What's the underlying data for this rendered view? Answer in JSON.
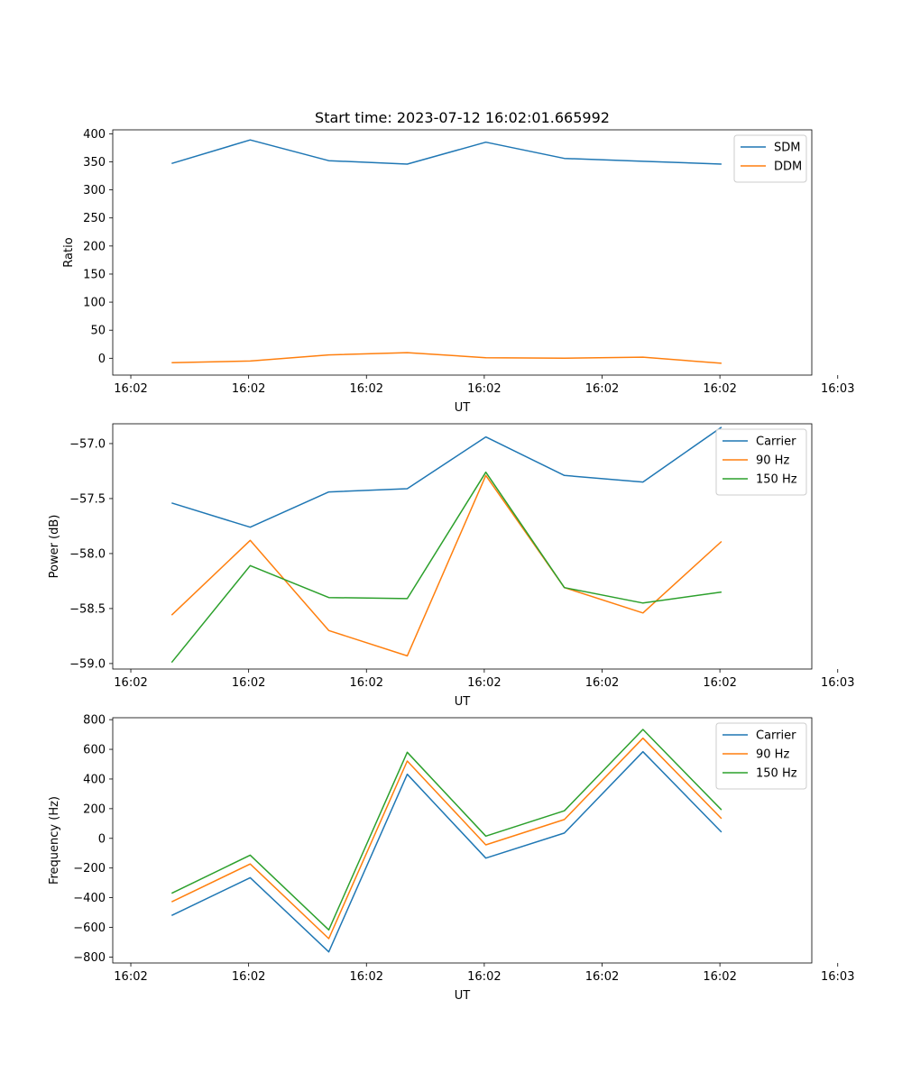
{
  "page_title": "Start time: 2023-07-12 16:02:01.665992",
  "chart_data": [
    {
      "type": "line",
      "title": "Start time: 2023-07-12 16:02:01.665992",
      "xlabel": "UT",
      "ylabel": "Ratio",
      "x": [
        1,
        2,
        3,
        4,
        5,
        6,
        7,
        8
      ],
      "xlim": [
        0.25,
        9.15
      ],
      "xticks": [
        0.48,
        1.98,
        3.48,
        4.98,
        6.48,
        7.98,
        9.48
      ],
      "xtick_labels": [
        "16:02",
        "16:02",
        "16:02",
        "16:02",
        "16:02",
        "16:02",
        "16:03"
      ],
      "ylim": [
        -30,
        407
      ],
      "yticks": [
        0,
        50,
        100,
        150,
        200,
        250,
        300,
        350,
        400
      ],
      "ytick_labels": [
        "0",
        "50",
        "100",
        "150",
        "200",
        "250",
        "300",
        "350",
        "400"
      ],
      "legend_position": "top-right",
      "series": [
        {
          "name": "SDM",
          "color": "#1f77b4",
          "values": [
            347,
            389,
            352,
            346,
            385,
            356,
            351,
            346
          ]
        },
        {
          "name": "DDM",
          "color": "#ff7f0e",
          "values": [
            -8,
            -5,
            6,
            10,
            1,
            0,
            2,
            -9
          ]
        }
      ]
    },
    {
      "type": "line",
      "title": "",
      "xlabel": "UT",
      "ylabel": "Power (dB)",
      "x": [
        1,
        2,
        3,
        4,
        5,
        6,
        7,
        8
      ],
      "xlim": [
        0.25,
        9.15
      ],
      "xticks": [
        0.48,
        1.98,
        3.48,
        4.98,
        6.48,
        7.98,
        9.48
      ],
      "xtick_labels": [
        "16:02",
        "16:02",
        "16:02",
        "16:02",
        "16:02",
        "16:02",
        "16:03"
      ],
      "ylim": [
        -59.05,
        -56.82
      ],
      "yticks": [
        -59.0,
        -58.5,
        -58.0,
        -57.5,
        -57.0
      ],
      "ytick_labels": [
        "−59.0",
        "−58.5",
        "−58.0",
        "−57.5",
        "−57.0"
      ],
      "legend_position": "top-right",
      "series": [
        {
          "name": "Carrier",
          "color": "#1f77b4",
          "values": [
            -57.54,
            -57.76,
            -57.44,
            -57.41,
            -56.94,
            -57.29,
            -57.35,
            -56.85
          ]
        },
        {
          "name": "90 Hz",
          "color": "#ff7f0e",
          "values": [
            -58.56,
            -57.88,
            -58.7,
            -58.93,
            -57.29,
            -58.31,
            -58.54,
            -57.89
          ]
        },
        {
          "name": "150 Hz",
          "color": "#2ca02c",
          "values": [
            -58.99,
            -58.11,
            -58.4,
            -58.41,
            -57.26,
            -58.31,
            -58.45,
            -58.35
          ]
        }
      ]
    },
    {
      "type": "line",
      "title": "",
      "xlabel": "UT",
      "ylabel": "Frequency (Hz)",
      "x": [
        1,
        2,
        3,
        4,
        5,
        6,
        7,
        8
      ],
      "xlim": [
        0.25,
        9.15
      ],
      "xticks": [
        0.48,
        1.98,
        3.48,
        4.98,
        6.48,
        7.98,
        9.48
      ],
      "xtick_labels": [
        "16:02",
        "16:02",
        "16:02",
        "16:02",
        "16:02",
        "16:02",
        "16:03"
      ],
      "ylim": [
        -840,
        813
      ],
      "yticks": [
        -800,
        -600,
        -400,
        -200,
        0,
        200,
        400,
        600,
        800
      ],
      "ytick_labels": [
        "−800",
        "−600",
        "−400",
        "−200",
        "0",
        "200",
        "400",
        "600",
        "800"
      ],
      "legend_position": "top-right",
      "series": [
        {
          "name": "Carrier",
          "color": "#1f77b4",
          "values": [
            -520,
            -265,
            -765,
            432,
            -133,
            36,
            584,
            42
          ]
        },
        {
          "name": "90 Hz",
          "color": "#ff7f0e",
          "values": [
            -428,
            -173,
            -676,
            521,
            -44,
            127,
            675,
            133
          ]
        },
        {
          "name": "150 Hz",
          "color": "#2ca02c",
          "values": [
            -370,
            -113,
            -617,
            580,
            15,
            186,
            734,
            192
          ]
        }
      ]
    }
  ]
}
